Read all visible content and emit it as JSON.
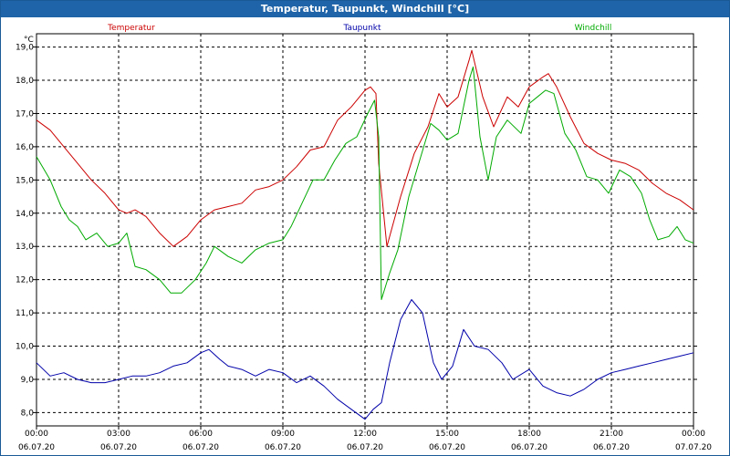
{
  "window": {
    "title": "Temperatur, Taupunkt, Windchill [°C]"
  },
  "chart_data": {
    "type": "line",
    "title": "Temperatur, Taupunkt, Windchill [°C]",
    "ylabel": "°C",
    "ylim": [
      7.6,
      19.4
    ],
    "xlim": [
      0,
      24
    ],
    "grid": true,
    "yticks": [
      "8,0",
      "9,0",
      "10,0",
      "11,0",
      "12,0",
      "13,0",
      "14,0",
      "15,0",
      "16,0",
      "17,0",
      "18,0",
      "19,0"
    ],
    "xticks": [
      {
        "time": "00:00",
        "date": "06.07.20"
      },
      {
        "time": "03:00",
        "date": "06.07.20"
      },
      {
        "time": "06:00",
        "date": "06.07.20"
      },
      {
        "time": "09:00",
        "date": "06.07.20"
      },
      {
        "time": "12:00",
        "date": "06.07.20"
      },
      {
        "time": "15:00",
        "date": "06.07.20"
      },
      {
        "time": "18:00",
        "date": "06.07.20"
      },
      {
        "time": "21:00",
        "date": "06.07.20"
      },
      {
        "time": "00:00",
        "date": "07.07.20"
      }
    ],
    "series": [
      {
        "name": "Temperatur",
        "color": "#cc0000",
        "legend_pos": "left",
        "points": [
          [
            0,
            16.8
          ],
          [
            0.5,
            16.5
          ],
          [
            1,
            16.0
          ],
          [
            1.5,
            15.5
          ],
          [
            2,
            15.0
          ],
          [
            2.5,
            14.6
          ],
          [
            3,
            14.1
          ],
          [
            3.3,
            14.0
          ],
          [
            3.6,
            14.1
          ],
          [
            4,
            13.9
          ],
          [
            4.5,
            13.4
          ],
          [
            5,
            13.0
          ],
          [
            5.5,
            13.3
          ],
          [
            6,
            13.8
          ],
          [
            6.5,
            14.1
          ],
          [
            7,
            14.2
          ],
          [
            7.5,
            14.3
          ],
          [
            8,
            14.7
          ],
          [
            8.5,
            14.8
          ],
          [
            9,
            15.0
          ],
          [
            9.5,
            15.4
          ],
          [
            10,
            15.9
          ],
          [
            10.5,
            16.0
          ],
          [
            11,
            16.8
          ],
          [
            11.5,
            17.2
          ],
          [
            12,
            17.7
          ],
          [
            12.2,
            17.8
          ],
          [
            12.4,
            17.6
          ],
          [
            12.5,
            15.5
          ],
          [
            12.8,
            13.0
          ],
          [
            13.3,
            14.5
          ],
          [
            13.8,
            15.8
          ],
          [
            14.3,
            16.6
          ],
          [
            14.7,
            17.6
          ],
          [
            15,
            17.2
          ],
          [
            15.4,
            17.5
          ],
          [
            15.8,
            18.6
          ],
          [
            15.9,
            18.9
          ],
          [
            16.3,
            17.5
          ],
          [
            16.7,
            16.6
          ],
          [
            17.2,
            17.5
          ],
          [
            17.6,
            17.2
          ],
          [
            18,
            17.8
          ],
          [
            18.5,
            18.1
          ],
          [
            18.7,
            18.2
          ],
          [
            19,
            17.8
          ],
          [
            19.5,
            16.9
          ],
          [
            20,
            16.1
          ],
          [
            20.5,
            15.8
          ],
          [
            21,
            15.6
          ],
          [
            21.5,
            15.5
          ],
          [
            22,
            15.3
          ],
          [
            22.5,
            14.9
          ],
          [
            23,
            14.6
          ],
          [
            23.5,
            14.4
          ],
          [
            24,
            14.1
          ]
        ]
      },
      {
        "name": "Taupunkt",
        "color": "#0000aa",
        "legend_pos": "center",
        "points": [
          [
            0,
            9.5
          ],
          [
            0.5,
            9.1
          ],
          [
            1,
            9.2
          ],
          [
            1.5,
            9.0
          ],
          [
            2,
            8.9
          ],
          [
            2.5,
            8.9
          ],
          [
            3,
            9.0
          ],
          [
            3.5,
            9.1
          ],
          [
            4,
            9.1
          ],
          [
            4.5,
            9.2
          ],
          [
            5,
            9.4
          ],
          [
            5.5,
            9.5
          ],
          [
            6,
            9.8
          ],
          [
            6.3,
            9.9
          ],
          [
            6.7,
            9.6
          ],
          [
            7,
            9.4
          ],
          [
            7.5,
            9.3
          ],
          [
            8,
            9.1
          ],
          [
            8.5,
            9.3
          ],
          [
            9,
            9.2
          ],
          [
            9.5,
            8.9
          ],
          [
            10,
            9.1
          ],
          [
            10.5,
            8.8
          ],
          [
            11,
            8.4
          ],
          [
            11.5,
            8.1
          ],
          [
            12,
            7.8
          ],
          [
            12.3,
            8.1
          ],
          [
            12.6,
            8.3
          ],
          [
            12.9,
            9.5
          ],
          [
            13.3,
            10.8
          ],
          [
            13.7,
            11.4
          ],
          [
            14.1,
            11.0
          ],
          [
            14.5,
            9.5
          ],
          [
            14.8,
            9.0
          ],
          [
            15.2,
            9.4
          ],
          [
            15.6,
            10.5
          ],
          [
            16,
            10.0
          ],
          [
            16.5,
            9.9
          ],
          [
            17,
            9.5
          ],
          [
            17.4,
            9.0
          ],
          [
            18,
            9.3
          ],
          [
            18.5,
            8.8
          ],
          [
            19,
            8.6
          ],
          [
            19.5,
            8.5
          ],
          [
            20,
            8.7
          ],
          [
            20.5,
            9.0
          ],
          [
            21,
            9.2
          ],
          [
            21.5,
            9.3
          ],
          [
            22,
            9.4
          ],
          [
            22.5,
            9.5
          ],
          [
            23,
            9.6
          ],
          [
            23.5,
            9.7
          ],
          [
            24,
            9.8
          ]
        ]
      },
      {
        "name": "Windchill",
        "color": "#00aa00",
        "legend_pos": "right",
        "points": [
          [
            0,
            15.7
          ],
          [
            0.5,
            15.0
          ],
          [
            0.9,
            14.2
          ],
          [
            1.2,
            13.8
          ],
          [
            1.5,
            13.6
          ],
          [
            1.8,
            13.2
          ],
          [
            2.2,
            13.4
          ],
          [
            2.6,
            13.0
          ],
          [
            3.0,
            13.1
          ],
          [
            3.3,
            13.4
          ],
          [
            3.6,
            12.4
          ],
          [
            4.0,
            12.3
          ],
          [
            4.5,
            12.0
          ],
          [
            4.9,
            11.6
          ],
          [
            5.3,
            11.6
          ],
          [
            5.8,
            12.0
          ],
          [
            6.2,
            12.5
          ],
          [
            6.5,
            13.0
          ],
          [
            7.0,
            12.7
          ],
          [
            7.5,
            12.5
          ],
          [
            8.0,
            12.9
          ],
          [
            8.5,
            13.1
          ],
          [
            9.0,
            13.2
          ],
          [
            9.3,
            13.6
          ],
          [
            9.7,
            14.3
          ],
          [
            10.1,
            15.0
          ],
          [
            10.5,
            15.0
          ],
          [
            10.9,
            15.6
          ],
          [
            11.3,
            16.1
          ],
          [
            11.7,
            16.3
          ],
          [
            12.1,
            17.0
          ],
          [
            12.35,
            17.4
          ],
          [
            12.5,
            16.3
          ],
          [
            12.6,
            11.4
          ],
          [
            12.9,
            12.2
          ],
          [
            13.2,
            12.9
          ],
          [
            13.6,
            14.5
          ],
          [
            14.0,
            15.6
          ],
          [
            14.4,
            16.7
          ],
          [
            14.7,
            16.5
          ],
          [
            15.0,
            16.2
          ],
          [
            15.4,
            16.4
          ],
          [
            15.8,
            18.0
          ],
          [
            15.95,
            18.4
          ],
          [
            16.2,
            16.3
          ],
          [
            16.5,
            15.0
          ],
          [
            16.8,
            16.3
          ],
          [
            17.2,
            16.8
          ],
          [
            17.7,
            16.4
          ],
          [
            18.0,
            17.3
          ],
          [
            18.3,
            17.5
          ],
          [
            18.6,
            17.7
          ],
          [
            18.9,
            17.6
          ],
          [
            19.3,
            16.4
          ],
          [
            19.7,
            15.9
          ],
          [
            20.1,
            15.1
          ],
          [
            20.5,
            15.0
          ],
          [
            20.9,
            14.6
          ],
          [
            21.3,
            15.3
          ],
          [
            21.7,
            15.1
          ],
          [
            22.1,
            14.6
          ],
          [
            22.4,
            13.8
          ],
          [
            22.7,
            13.2
          ],
          [
            23.1,
            13.3
          ],
          [
            23.4,
            13.6
          ],
          [
            23.7,
            13.2
          ],
          [
            24,
            13.1
          ]
        ]
      }
    ]
  }
}
